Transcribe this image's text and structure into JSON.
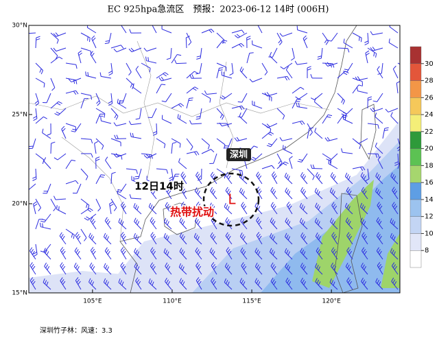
{
  "map": {
    "title": "EC 925hpa急流区　预报：2023-06-12 14时 (006H)",
    "xlim": [
      101,
      124.3
    ],
    "ylim": [
      15,
      30
    ],
    "lon_ticks": [
      {
        "value": 105,
        "label": "105°E"
      },
      {
        "value": 110,
        "label": "110°E"
      },
      {
        "value": 115,
        "label": "115°E"
      },
      {
        "value": 120,
        "label": "120°E"
      }
    ],
    "lat_ticks": [
      {
        "value": 15,
        "label": "15°N"
      },
      {
        "value": 20,
        "label": "20°N"
      },
      {
        "value": 25,
        "label": "25°N"
      },
      {
        "value": 30,
        "label": "30°N"
      }
    ],
    "colorbar": {
      "ticks": [
        8,
        10,
        12,
        14,
        16,
        18,
        20,
        22,
        24,
        26,
        28,
        30
      ],
      "colors": [
        "#ffffff",
        "#e1e6f8",
        "#c3d5f4",
        "#9cc3ef",
        "#5e9ee4",
        "#a6d66e",
        "#5cc253",
        "#2e9a3a",
        "#f4ee78",
        "#f5c85a",
        "#f39647",
        "#e3563a",
        "#a83232"
      ]
    },
    "annotations": {
      "city": "深圳",
      "time": "12日14时",
      "system": "热带扰动",
      "low": "L"
    },
    "footer": "深圳竹子林：风速：3.3"
  }
}
